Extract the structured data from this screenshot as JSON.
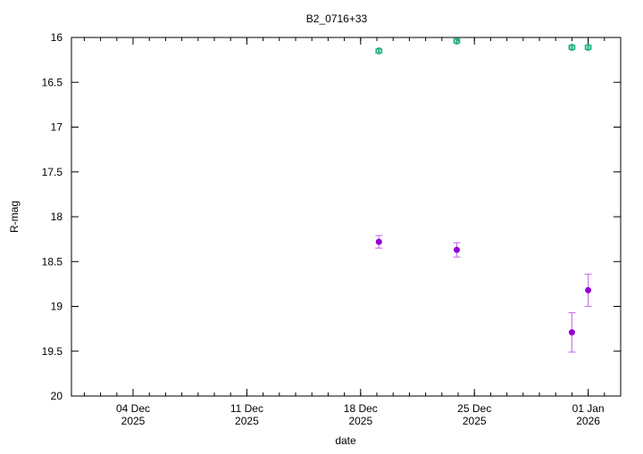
{
  "chart_data": {
    "type": "scatter",
    "title": "B2_0716+33",
    "xlabel": "date",
    "ylabel": "R-mag",
    "xlim": [
      "2025-11-30T05:00",
      "2026-01-03T00:00"
    ],
    "ylim": [
      20,
      16
    ],
    "y_inverted": true,
    "grid": false,
    "x_ticks": [
      {
        "date": "2025-12-04",
        "label1": "04 Dec",
        "label2": "2025"
      },
      {
        "date": "2025-12-11",
        "label1": "11 Dec",
        "label2": "2025"
      },
      {
        "date": "2025-12-18",
        "label1": "18 Dec",
        "label2": "2025"
      },
      {
        "date": "2025-12-25",
        "label1": "25 Dec",
        "label2": "2025"
      },
      {
        "date": "2026-01-01",
        "label1": "01 Jan",
        "label2": "2026"
      }
    ],
    "y_ticks": [
      "16",
      "16.5",
      "17",
      "17.5",
      "18",
      "18.5",
      "19",
      "19.5",
      "20"
    ],
    "series": [
      {
        "color": "#9400d3",
        "marker": "filled-circle",
        "points": [
          {
            "x": "2025-12-19T03:00",
            "y": 18.28,
            "err": 0.07
          },
          {
            "x": "2025-12-23T22:00",
            "y": 18.37,
            "err": 0.08
          },
          {
            "x": "2025-12-31T00:00",
            "y": 19.29,
            "err": 0.22
          },
          {
            "x": "2026-01-01T00:00",
            "y": 18.82,
            "err": 0.18
          }
        ]
      },
      {
        "color": "#20b080",
        "marker": "open-circle",
        "points": [
          {
            "x": "2025-12-19T03:00",
            "y": 16.15,
            "err": 0.02
          },
          {
            "x": "2025-12-23T22:00",
            "y": 16.04,
            "err": 0.02
          },
          {
            "x": "2025-12-31T00:00",
            "y": 16.11,
            "err": 0.02
          },
          {
            "x": "2026-01-01T00:00",
            "y": 16.11,
            "err": 0.02
          }
        ]
      }
    ]
  }
}
